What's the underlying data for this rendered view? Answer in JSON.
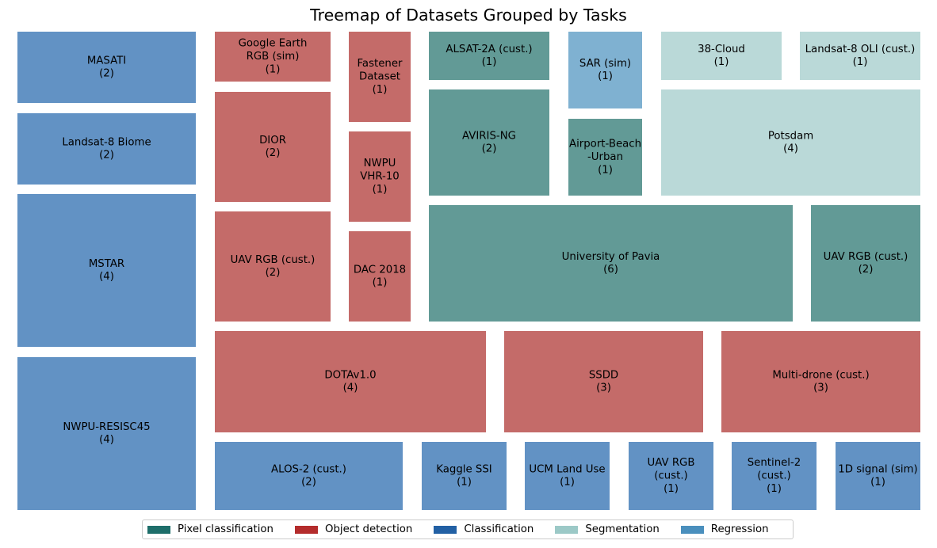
{
  "chart_data": {
    "type": "treemap",
    "title": "Treemap of Datasets Grouped by Tasks",
    "groups": [
      {
        "name": "Pixel classification",
        "legend_color": "#1e6e6a",
        "tile_color": "#629a96"
      },
      {
        "name": "Object detection",
        "legend_color": "#b42c2c",
        "tile_color": "#c46b69"
      },
      {
        "name": "Classification",
        "legend_color": "#2260a4",
        "tile_color": "#6292c4"
      },
      {
        "name": "Segmentation",
        "legend_color": "#9cc9c7",
        "tile_color": "#bad9d8"
      },
      {
        "name": "Regression",
        "legend_color": "#4a8fbd",
        "tile_color": "#7fb1d1"
      }
    ],
    "tiles": [
      {
        "label": "MASATI",
        "value": 2,
        "group": "Classification"
      },
      {
        "label": "Landsat-8 Biome",
        "value": 2,
        "group": "Classification"
      },
      {
        "label": "MSTAR",
        "value": 4,
        "group": "Classification"
      },
      {
        "label": "NWPU-RESISC45",
        "value": 4,
        "group": "Classification"
      },
      {
        "label": "Google Earth\nRGB (sim)",
        "value": 1,
        "group": "Object detection"
      },
      {
        "label": "DIOR",
        "value": 2,
        "group": "Object detection"
      },
      {
        "label": "UAV RGB (cust.)",
        "value": 2,
        "group": "Object detection"
      },
      {
        "label": "Fastener\nDataset",
        "value": 1,
        "group": "Object detection"
      },
      {
        "label": "NWPU\nVHR-10",
        "value": 1,
        "group": "Object detection"
      },
      {
        "label": "DAC 2018",
        "value": 1,
        "group": "Object detection"
      },
      {
        "label": "ALSAT-2A (cust.)",
        "value": 1,
        "group": "Pixel classification"
      },
      {
        "label": "AVIRIS-NG",
        "value": 2,
        "group": "Pixel classification"
      },
      {
        "label": "SAR (sim)",
        "value": 1,
        "group": "Regression"
      },
      {
        "label": "Airport-Beach\n-Urban",
        "value": 1,
        "group": "Pixel classification"
      },
      {
        "label": "38-Cloud",
        "value": 1,
        "group": "Segmentation"
      },
      {
        "label": "Landsat-8 OLI (cust.)",
        "value": 1,
        "group": "Segmentation"
      },
      {
        "label": "Potsdam",
        "value": 4,
        "group": "Segmentation"
      },
      {
        "label": "University of Pavia",
        "value": 6,
        "group": "Pixel classification"
      },
      {
        "label": "UAV RGB (cust.)",
        "value": 2,
        "group": "Pixel classification"
      },
      {
        "label": "DOTAv1.0",
        "value": 4,
        "group": "Object detection"
      },
      {
        "label": "SSDD",
        "value": 3,
        "group": "Object detection"
      },
      {
        "label": "Multi-drone (cust.)",
        "value": 3,
        "group": "Object detection"
      },
      {
        "label": "ALOS-2 (cust.)",
        "value": 2,
        "group": "Classification"
      },
      {
        "label": "Kaggle SSI",
        "value": 1,
        "group": "Classification"
      },
      {
        "label": "UCM Land Use",
        "value": 1,
        "group": "Classification"
      },
      {
        "label": "UAV RGB\n(cust.)",
        "value": 1,
        "group": "Classification"
      },
      {
        "label": "Sentinel-2\n(cust.)",
        "value": 1,
        "group": "Classification"
      },
      {
        "label": "1D signal (sim)",
        "value": 1,
        "group": "Classification"
      }
    ],
    "legend": {
      "placement": "bottom-center",
      "entries": [
        "Pixel classification",
        "Object detection",
        "Classification",
        "Segmentation",
        "Regression"
      ]
    }
  }
}
